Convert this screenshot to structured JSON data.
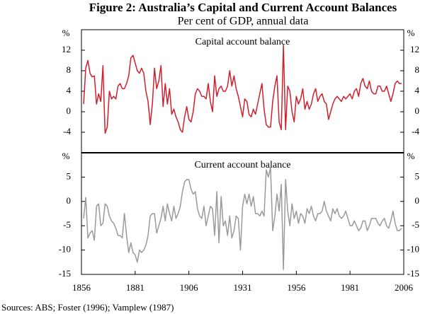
{
  "figure": {
    "title": "Figure 2: Australia’s Capital and Current Account Balances",
    "subtitle": "Per cent of GDP, annual data",
    "source": "Sources:   ABS; Foster (1996); Vamplew (1987)"
  },
  "chart_data": [
    {
      "type": "line",
      "title": "Capital account balance",
      "yunit": "%",
      "color": "#d0202e",
      "xlim": [
        1856,
        2006
      ],
      "ylim": [
        -8,
        16
      ],
      "yticks": [
        -4,
        0,
        4,
        8,
        12
      ],
      "x": [
        1857,
        1858,
        1859,
        1860,
        1861,
        1862,
        1863,
        1864,
        1865,
        1866,
        1867,
        1868,
        1869,
        1870,
        1871,
        1872,
        1873,
        1874,
        1875,
        1876,
        1877,
        1878,
        1879,
        1880,
        1881,
        1882,
        1883,
        1884,
        1885,
        1886,
        1887,
        1888,
        1889,
        1890,
        1891,
        1892,
        1893,
        1894,
        1895,
        1896,
        1897,
        1898,
        1899,
        1900,
        1901,
        1902,
        1903,
        1904,
        1905,
        1906,
        1907,
        1908,
        1909,
        1910,
        1911,
        1912,
        1913,
        1914,
        1915,
        1916,
        1917,
        1918,
        1919,
        1920,
        1921,
        1922,
        1923,
        1924,
        1925,
        1926,
        1927,
        1928,
        1929,
        1930,
        1931,
        1932,
        1933,
        1934,
        1935,
        1936,
        1937,
        1938,
        1939,
        1940,
        1941,
        1942,
        1943,
        1944,
        1945,
        1946,
        1947,
        1948,
        1949,
        1950,
        1951,
        1952,
        1953,
        1954,
        1955,
        1956,
        1957,
        1958,
        1959,
        1960,
        1961,
        1962,
        1963,
        1964,
        1965,
        1966,
        1967,
        1968,
        1969,
        1970,
        1971,
        1972,
        1973,
        1974,
        1975,
        1976,
        1977,
        1978,
        1979,
        1980,
        1981,
        1982,
        1983,
        1984,
        1985,
        1986,
        1987,
        1988,
        1989,
        1990,
        1991,
        1992,
        1993,
        1994,
        1995,
        1996,
        1997,
        1998,
        1999,
        2000,
        2001,
        2002,
        2003,
        2004,
        2005
      ],
      "values": [
        1.5,
        8.5,
        10,
        7.5,
        6.8,
        7,
        1.5,
        3.5,
        2,
        9,
        -4.2,
        -3,
        4,
        2.5,
        3,
        2.5,
        5,
        5.5,
        4.5,
        4.5,
        5.5,
        7,
        10.5,
        11,
        9.5,
        8,
        7.5,
        8.5,
        7.5,
        4,
        2,
        -2.5,
        1.5,
        8.5,
        4.5,
        6,
        9,
        1,
        5.5,
        1.5,
        4.5,
        -0.5,
        0.5,
        -1,
        -2,
        -3.5,
        -4,
        -1,
        1,
        -1.5,
        -2,
        0,
        3.5,
        4.5,
        4,
        3,
        3,
        2.5,
        5.5,
        2,
        0,
        7,
        3,
        4.5,
        5,
        4,
        4,
        5,
        8,
        5,
        7,
        4.5,
        3,
        1,
        -1,
        2.5,
        2,
        -0.5,
        -1,
        0.5,
        -0.5,
        1.5,
        3.5,
        5.5,
        0.5,
        -2.5,
        -3,
        -3,
        2,
        5,
        7,
        -2,
        -3.5,
        13,
        -3.5,
        5,
        4,
        0,
        -2,
        3,
        1.5,
        2.5,
        4.5,
        0.5,
        2,
        0.5,
        1.5,
        3.5,
        4.5,
        2,
        3,
        3.5,
        2,
        1.5,
        -1.5,
        0,
        1.5,
        2.5,
        3,
        2.5,
        2,
        3,
        2.5,
        3,
        3.5,
        2.5,
        4,
        4.5,
        3,
        5.5,
        6.5,
        5,
        4.5,
        6,
        4,
        3.5,
        3.5,
        5,
        5,
        4,
        4,
        5,
        3.5,
        2,
        3.5,
        5.5,
        6,
        5.5,
        5.5
      ]
    },
    {
      "type": "line",
      "title": "Current account balance",
      "yunit": "%",
      "color": "#9a9a9a",
      "xlim": [
        1856,
        2006
      ],
      "xticks": [
        1856,
        1881,
        1906,
        1931,
        1956,
        1981,
        2006
      ],
      "ylim": [
        -15,
        10
      ],
      "yticks": [
        -15,
        -10,
        -5,
        0,
        5
      ],
      "x": [
        1857,
        1858,
        1859,
        1860,
        1861,
        1862,
        1863,
        1864,
        1865,
        1866,
        1867,
        1868,
        1869,
        1870,
        1871,
        1872,
        1873,
        1874,
        1875,
        1876,
        1877,
        1878,
        1879,
        1880,
        1881,
        1882,
        1883,
        1884,
        1885,
        1886,
        1887,
        1888,
        1889,
        1890,
        1891,
        1892,
        1893,
        1894,
        1895,
        1896,
        1897,
        1898,
        1899,
        1900,
        1901,
        1902,
        1903,
        1904,
        1905,
        1906,
        1907,
        1908,
        1909,
        1910,
        1911,
        1912,
        1913,
        1914,
        1915,
        1916,
        1917,
        1918,
        1919,
        1920,
        1921,
        1922,
        1923,
        1924,
        1925,
        1926,
        1927,
        1928,
        1929,
        1930,
        1931,
        1932,
        1933,
        1934,
        1935,
        1936,
        1937,
        1938,
        1939,
        1940,
        1941,
        1942,
        1943,
        1944,
        1945,
        1946,
        1947,
        1948,
        1949,
        1950,
        1951,
        1952,
        1953,
        1954,
        1955,
        1956,
        1957,
        1958,
        1959,
        1960,
        1961,
        1962,
        1963,
        1964,
        1965,
        1966,
        1967,
        1968,
        1969,
        1970,
        1971,
        1972,
        1973,
        1974,
        1975,
        1976,
        1977,
        1978,
        1979,
        1980,
        1981,
        1982,
        1983,
        1984,
        1985,
        1986,
        1987,
        1988,
        1989,
        1990,
        1991,
        1992,
        1993,
        1994,
        1995,
        1996,
        1997,
        1998,
        1999,
        2000,
        2001,
        2002,
        2003,
        2004,
        2005
      ],
      "values": [
        -3.5,
        0.8,
        -7.5,
        -6.5,
        -6,
        -8,
        -1,
        -0.5,
        -5,
        -4.5,
        -0.5,
        -1,
        -3,
        -4,
        -4.5,
        -5.5,
        -7,
        -7,
        -7.5,
        -2.5,
        -7,
        -10.5,
        -8.5,
        -10.5,
        -11,
        -12.5,
        -10,
        -10.5,
        -10,
        -9,
        -7,
        -3,
        -2.5,
        -2.5,
        -6.5,
        -5,
        -3.5,
        -1,
        -4,
        -0.5,
        -2.5,
        -4,
        -1,
        -3.5,
        -2.5,
        -1,
        2,
        4,
        4.5,
        4.5,
        2.5,
        1.5,
        2,
        -1.5,
        -3,
        -3.5,
        -1,
        -5,
        -3,
        -1,
        -1.5,
        -7,
        2,
        -8.5,
        1,
        -5,
        -4,
        -7,
        -3,
        -7.5,
        -6,
        -3,
        -3.5,
        -10,
        -1,
        1.5,
        -0.5,
        1.5,
        -1,
        1,
        -2.5,
        -2.5,
        -3,
        -2,
        -3,
        6.5,
        5,
        7,
        -6,
        -3,
        1.5,
        -2,
        3.5,
        -14,
        4.5,
        -2,
        -5,
        -0.5,
        -3.5,
        -2,
        -4.5,
        -2.5,
        -3,
        -4.5,
        -1.5,
        -2.5,
        -1,
        -3,
        -4,
        -2.5,
        -2.5,
        -2,
        0,
        -2,
        -3,
        -4,
        -1.5,
        -2.5,
        -1.5,
        -3,
        -3.5,
        -3,
        -2,
        -3.5,
        -5,
        -5,
        -4,
        -5,
        -6,
        -5.5,
        -4,
        -4,
        -6,
        -5,
        -3.5,
        -3.5,
        -3.5,
        -4.5,
        -5,
        -4,
        -3.5,
        -5,
        -5.5,
        -4,
        -2,
        -4.5,
        -6,
        -6,
        -5.5
      ]
    }
  ]
}
